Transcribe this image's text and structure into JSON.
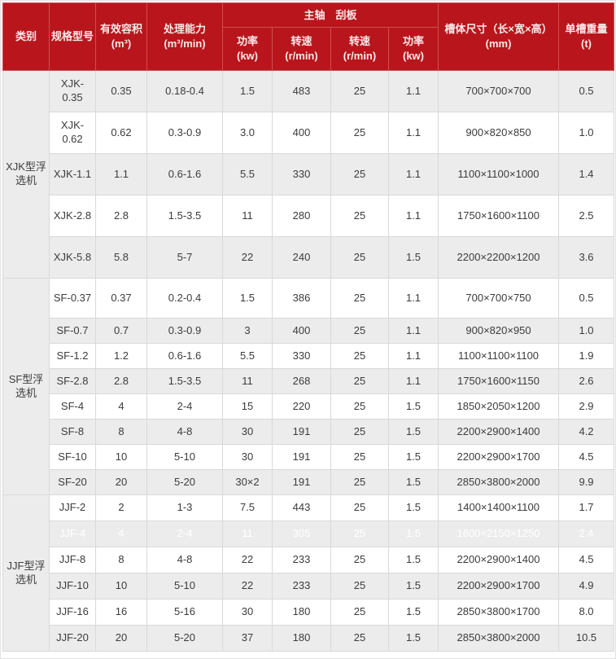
{
  "colors": {
    "header_bg": "#b8161c",
    "header_text": "#f9e9e9",
    "row_gray": "#ececec",
    "row_white": "#ffffff",
    "border": "#d9d9d9",
    "body_text": "#3c3c3c",
    "highlight_text": "#ffffff"
  },
  "table": {
    "header": {
      "category": "类别",
      "model": "规格型号",
      "volume_name": "有效容积",
      "volume_unit": "(m³)",
      "capacity_name": "处理能力",
      "capacity_unit": "(m³/min)",
      "group_shaft_scraper": "主轴　刮板",
      "shaft_power_name": "功率",
      "shaft_power_unit": "(kw)",
      "shaft_speed_name": "转速",
      "shaft_speed_unit": "(r/min)",
      "scraper_speed_name": "转速",
      "scraper_speed_unit": "(r/min)",
      "scraper_power_name": "功率",
      "scraper_power_unit": "(kw)",
      "tank_name": "槽体尺寸（长×宽×高）",
      "tank_unit": "(mm)",
      "weight_name": "单槽重量",
      "weight_unit": "(t)"
    },
    "sections": [
      {
        "category": "XJK型浮选机",
        "rows": [
          {
            "model": "XJK-0.35",
            "volume": "0.35",
            "capacity": "0.18-0.4",
            "shaft_power": "1.5",
            "shaft_speed": "483",
            "scraper_speed": "25",
            "scraper_power": "1.1",
            "tank": "700×700×700",
            "weight": "0.5"
          },
          {
            "model": "XJK-0.62",
            "volume": "0.62",
            "capacity": "0.3-0.9",
            "shaft_power": "3.0",
            "shaft_speed": "400",
            "scraper_speed": "25",
            "scraper_power": "1.1",
            "tank": "900×820×850",
            "weight": "1.0"
          },
          {
            "model": "XJK-1.1",
            "volume": "1.1",
            "capacity": "0.6-1.6",
            "shaft_power": "5.5",
            "shaft_speed": "330",
            "scraper_speed": "25",
            "scraper_power": "1.1",
            "tank": "1100×1100×1000",
            "weight": "1.4"
          },
          {
            "model": "XJK-2.8",
            "volume": "2.8",
            "capacity": "1.5-3.5",
            "shaft_power": "11",
            "shaft_speed": "280",
            "scraper_speed": "25",
            "scraper_power": "1.1",
            "tank": "1750×1600×1100",
            "weight": "2.5"
          },
          {
            "model": "XJK-5.8",
            "volume": "5.8",
            "capacity": "5-7",
            "shaft_power": "22",
            "shaft_speed": "240",
            "scraper_speed": "25",
            "scraper_power": "1.5",
            "tank": "2200×2200×1200",
            "weight": "3.6"
          }
        ]
      },
      {
        "category": "SF型浮选机",
        "rows": [
          {
            "model": "SF-0.37",
            "volume": "0.37",
            "capacity": "0.2-0.4",
            "shaft_power": "1.5",
            "shaft_speed": "386",
            "scraper_speed": "25",
            "scraper_power": "1.1",
            "tank": "700×700×750",
            "weight": "0.5"
          },
          {
            "model": "SF-0.7",
            "volume": "0.7",
            "capacity": "0.3-0.9",
            "shaft_power": "3",
            "shaft_speed": "400",
            "scraper_speed": "25",
            "scraper_power": "1.1",
            "tank": "900×820×950",
            "weight": "1.0"
          },
          {
            "model": "SF-1.2",
            "volume": "1.2",
            "capacity": "0.6-1.6",
            "shaft_power": "5.5",
            "shaft_speed": "330",
            "scraper_speed": "25",
            "scraper_power": "1.1",
            "tank": "1100×1100×1100",
            "weight": "1.9"
          },
          {
            "model": "SF-2.8",
            "volume": "2.8",
            "capacity": "1.5-3.5",
            "shaft_power": "11",
            "shaft_speed": "268",
            "scraper_speed": "25",
            "scraper_power": "1.1",
            "tank": "1750×1600×1150",
            "weight": "2.6"
          },
          {
            "model": "SF-4",
            "volume": "4",
            "capacity": "2-4",
            "shaft_power": "15",
            "shaft_speed": "220",
            "scraper_speed": "25",
            "scraper_power": "1.5",
            "tank": "1850×2050×1200",
            "weight": "2.9"
          },
          {
            "model": "SF-8",
            "volume": "8",
            "capacity": "4-8",
            "shaft_power": "30",
            "shaft_speed": "191",
            "scraper_speed": "25",
            "scraper_power": "1.5",
            "tank": "2200×2900×1400",
            "weight": "4.2"
          },
          {
            "model": "SF-10",
            "volume": "10",
            "capacity": "5-10",
            "shaft_power": "30",
            "shaft_speed": "191",
            "scraper_speed": "25",
            "scraper_power": "1.5",
            "tank": "2200×2900×1700",
            "weight": "4.5"
          },
          {
            "model": "SF-20",
            "volume": "20",
            "capacity": "5-20",
            "shaft_power": "30×2",
            "shaft_speed": "191",
            "scraper_speed": "25",
            "scraper_power": "1.5",
            "tank": "2850×3800×2000",
            "weight": "9.9"
          }
        ]
      },
      {
        "category": "JJF型浮选机",
        "rows": [
          {
            "model": "JJF-2",
            "volume": "2",
            "capacity": "1-3",
            "shaft_power": "7.5",
            "shaft_speed": "443",
            "scraper_speed": "25",
            "scraper_power": "1.5",
            "tank": "1400×1400×1100",
            "weight": "1.7"
          },
          {
            "model": "JJF-4",
            "volume": "4",
            "capacity": "2-4",
            "shaft_power": "11",
            "shaft_speed": "305",
            "scraper_speed": "25",
            "scraper_power": "1.5",
            "tank": "1600×2150×1250",
            "weight": "2.4",
            "highlighted": true
          },
          {
            "model": "JJF-8",
            "volume": "8",
            "capacity": "4-8",
            "shaft_power": "22",
            "shaft_speed": "233",
            "scraper_speed": "25",
            "scraper_power": "1.5",
            "tank": "2200×2900×1400",
            "weight": "4.5"
          },
          {
            "model": "JJF-10",
            "volume": "10",
            "capacity": "5-10",
            "shaft_power": "22",
            "shaft_speed": "233",
            "scraper_speed": "25",
            "scraper_power": "1.5",
            "tank": "2200×2900×1700",
            "weight": "4.9"
          },
          {
            "model": "JJF-16",
            "volume": "16",
            "capacity": "5-16",
            "shaft_power": "30",
            "shaft_speed": "180",
            "scraper_speed": "25",
            "scraper_power": "1.5",
            "tank": "2850×3800×1700",
            "weight": "8.0"
          },
          {
            "model": "JJF-20",
            "volume": "20",
            "capacity": "5-20",
            "shaft_power": "37",
            "shaft_speed": "180",
            "scraper_speed": "25",
            "scraper_power": "1.5",
            "tank": "2850×3800×2000",
            "weight": "10.5"
          }
        ]
      }
    ]
  }
}
